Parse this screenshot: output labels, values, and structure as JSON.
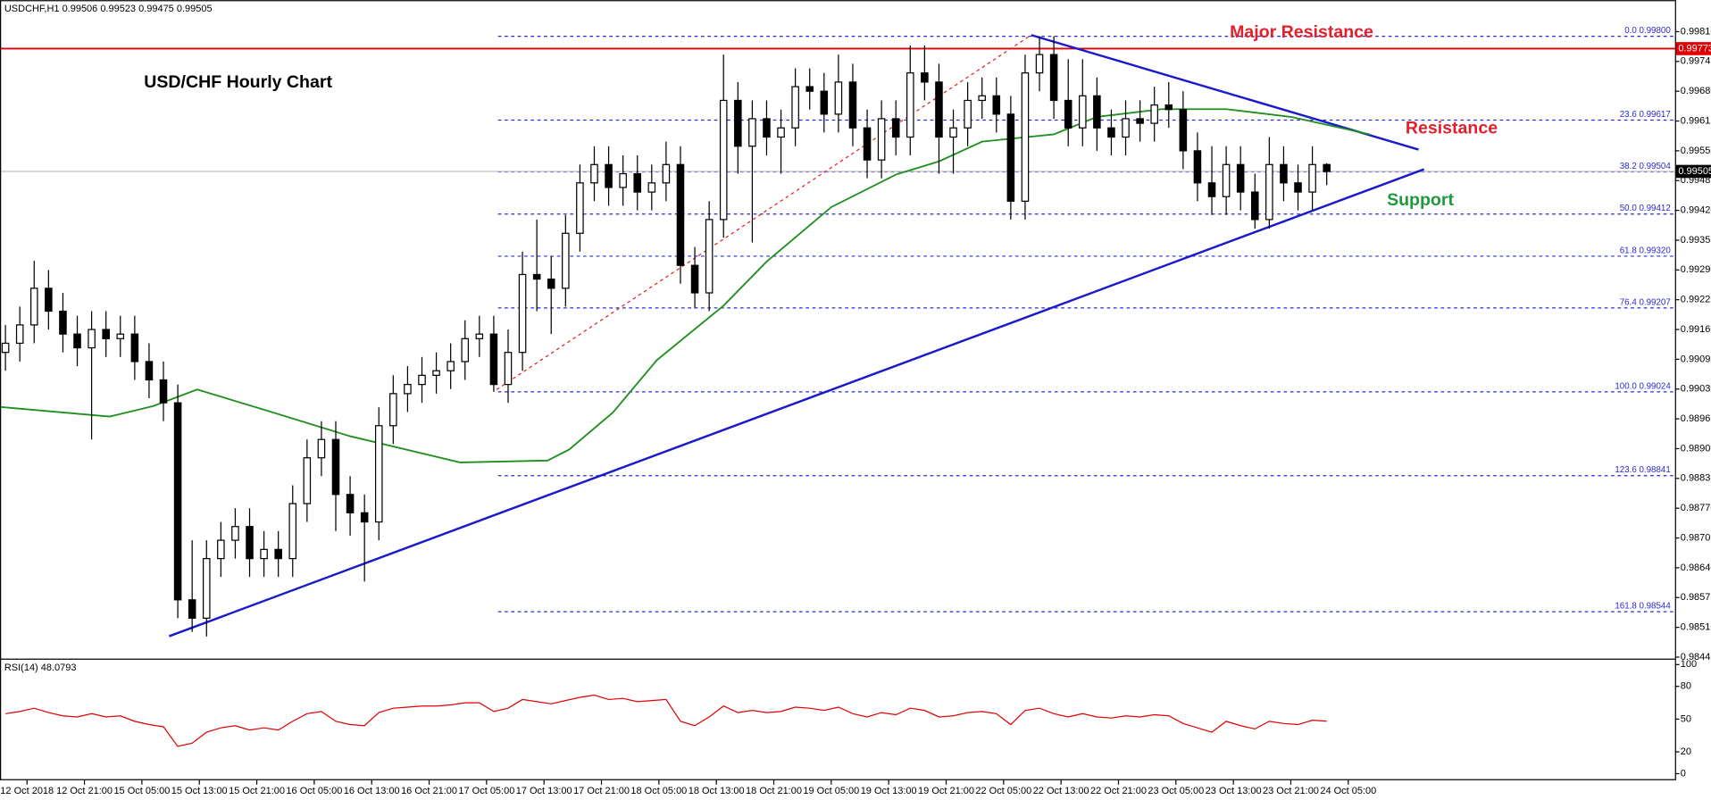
{
  "chart_data": [
    {
      "type": "candlestick",
      "title": "USD/CHF Hourly Chart",
      "subtitle": "USDCHF,H1  0.99506 0.99523 0.99475 0.99505",
      "x": [
        0,
        2,
        4,
        6,
        8,
        10,
        12,
        14,
        16,
        18,
        20,
        22,
        24,
        26,
        28,
        30,
        32,
        34,
        36,
        38,
        40,
        42,
        44,
        46,
        48,
        50,
        52,
        54,
        56,
        58,
        60,
        62,
        64,
        66,
        68,
        70,
        72,
        74,
        76,
        78,
        80,
        82,
        84,
        86,
        88,
        90,
        92,
        94,
        96,
        98,
        100,
        102,
        104,
        106,
        108,
        110,
        112,
        114,
        116,
        118,
        120,
        122,
        124,
        126,
        128,
        130,
        132,
        134,
        136,
        138,
        140,
        142,
        144,
        146,
        148,
        150,
        152,
        154,
        156,
        158,
        160,
        162,
        164,
        166,
        168,
        170,
        172,
        174,
        176,
        178,
        180,
        182,
        184
      ],
      "open": [
        0.9911,
        0.9913,
        0.9917,
        0.9925,
        0.992,
        0.9915,
        0.9912,
        0.9916,
        0.9914,
        0.9915,
        0.9909,
        0.9905,
        0.99,
        0.9857,
        0.9853,
        0.9866,
        0.987,
        0.9873,
        0.9866,
        0.9868,
        0.9866,
        0.9878,
        0.9888,
        0.9892,
        0.988,
        0.9876,
        0.9874,
        0.9895,
        0.9902,
        0.9904,
        0.9906,
        0.9907,
        0.9909,
        0.9914,
        0.9915,
        0.9904,
        0.9911,
        0.9928,
        0.9927,
        0.9925,
        0.9937,
        0.9948,
        0.9952,
        0.9947,
        0.995,
        0.9946,
        0.9948,
        0.9952,
        0.993,
        0.9924,
        0.994,
        0.9966,
        0.9956,
        0.9962,
        0.9958,
        0.996,
        0.9969,
        0.9968,
        0.9963,
        0.997,
        0.996,
        0.9953,
        0.9962,
        0.9958,
        0.9972,
        0.997,
        0.9958,
        0.996,
        0.9966,
        0.9967,
        0.9963,
        0.9944,
        0.9972,
        0.9976,
        0.9966,
        0.996,
        0.9967,
        0.996,
        0.9958,
        0.9962,
        0.9961,
        0.9965,
        0.9964,
        0.9955,
        0.9948,
        0.9945,
        0.9952,
        0.9946,
        0.994,
        0.9952,
        0.9948,
        0.9946,
        0.9952
      ],
      "high": [
        0.9917,
        0.9921,
        0.9931,
        0.9929,
        0.9924,
        0.9919,
        0.992,
        0.992,
        0.9919,
        0.9919,
        0.9913,
        0.9909,
        0.9904,
        0.987,
        0.987,
        0.9874,
        0.9877,
        0.9877,
        0.9872,
        0.9872,
        0.9882,
        0.9892,
        0.9896,
        0.9896,
        0.9884,
        0.988,
        0.9899,
        0.9906,
        0.9908,
        0.991,
        0.9911,
        0.9913,
        0.9918,
        0.9919,
        0.9919,
        0.9916,
        0.9933,
        0.994,
        0.9932,
        0.9941,
        0.9952,
        0.9956,
        0.9956,
        0.9954,
        0.9954,
        0.9952,
        0.9957,
        0.9956,
        0.9934,
        0.9944,
        0.9976,
        0.997,
        0.9966,
        0.9966,
        0.9964,
        0.9973,
        0.9973,
        0.9972,
        0.9976,
        0.9974,
        0.9964,
        0.9966,
        0.9966,
        0.9978,
        0.9978,
        0.9974,
        0.9964,
        0.997,
        0.9971,
        0.9971,
        0.9967,
        0.9976,
        0.998,
        0.998,
        0.9975,
        0.9975,
        0.9971,
        0.9964,
        0.9966,
        0.9966,
        0.9969,
        0.997,
        0.9968,
        0.9959,
        0.9956,
        0.9956,
        0.9956,
        0.995,
        0.9958,
        0.9956,
        0.9952,
        0.9956,
        0.99523
      ],
      "low": [
        0.9907,
        0.9909,
        0.9913,
        0.9916,
        0.9911,
        0.9908,
        0.9892,
        0.991,
        0.991,
        0.9905,
        0.9901,
        0.9896,
        0.9853,
        0.985,
        0.9849,
        0.9862,
        0.9866,
        0.9862,
        0.9862,
        0.9862,
        0.9862,
        0.9874,
        0.9884,
        0.9872,
        0.9871,
        0.9861,
        0.987,
        0.9891,
        0.9898,
        0.99,
        0.9902,
        0.9903,
        0.9905,
        0.991,
        0.99024,
        0.99,
        0.9907,
        0.992,
        0.9915,
        0.9921,
        0.9933,
        0.9944,
        0.9943,
        0.9943,
        0.9942,
        0.9942,
        0.9944,
        0.9926,
        0.99207,
        0.992,
        0.9936,
        0.995,
        0.9935,
        0.9954,
        0.995,
        0.9956,
        0.9964,
        0.9959,
        0.9959,
        0.9956,
        0.9949,
        0.9949,
        0.9954,
        0.9954,
        0.9966,
        0.995,
        0.995,
        0.9956,
        0.9962,
        0.9959,
        0.994,
        0.994,
        0.9968,
        0.9962,
        0.9956,
        0.9956,
        0.9955,
        0.9954,
        0.9954,
        0.9957,
        0.9957,
        0.996,
        0.9951,
        0.9944,
        0.9941,
        0.9941,
        0.9942,
        0.9938,
        0.9938,
        0.9944,
        0.9942,
        0.9942,
        0.99475
      ],
      "close": [
        0.9913,
        0.9917,
        0.9925,
        0.992,
        0.9915,
        0.9912,
        0.9916,
        0.9914,
        0.9915,
        0.9909,
        0.9905,
        0.99,
        0.9857,
        0.9853,
        0.9866,
        0.987,
        0.9873,
        0.9866,
        0.9868,
        0.9866,
        0.9878,
        0.9888,
        0.9892,
        0.988,
        0.9876,
        0.9874,
        0.9895,
        0.9902,
        0.9904,
        0.9906,
        0.9907,
        0.9909,
        0.9914,
        0.9915,
        0.9904,
        0.9911,
        0.9928,
        0.9927,
        0.9925,
        0.9937,
        0.9948,
        0.9952,
        0.9947,
        0.995,
        0.9946,
        0.9948,
        0.9952,
        0.993,
        0.9924,
        0.994,
        0.9966,
        0.9956,
        0.9962,
        0.9958,
        0.996,
        0.9969,
        0.9968,
        0.9963,
        0.997,
        0.996,
        0.9953,
        0.9962,
        0.9958,
        0.9972,
        0.997,
        0.9958,
        0.996,
        0.9966,
        0.9967,
        0.9963,
        0.9944,
        0.9972,
        0.9976,
        0.9966,
        0.996,
        0.9967,
        0.996,
        0.9958,
        0.9962,
        0.9961,
        0.9965,
        0.9964,
        0.9955,
        0.9948,
        0.9945,
        0.9952,
        0.9946,
        0.994,
        0.9952,
        0.9948,
        0.9946,
        0.9952,
        0.99505
      ],
      "up_color": "#ffffff",
      "down_color": "#000000",
      "wick_color": "#000000",
      "xlim": [
        -0.76,
        232.5
      ],
      "xticks": [
        {
          "value": 3,
          "label": "12 Oct 2018"
        },
        {
          "value": 11,
          "label": "12 Oct 21:00"
        },
        {
          "value": 19,
          "label": "15 Oct 05:00"
        },
        {
          "value": 27,
          "label": "15 Oct 13:00"
        },
        {
          "value": 35,
          "label": "15 Oct 21:00"
        },
        {
          "value": 43,
          "label": "16 Oct 05:00"
        },
        {
          "value": 51,
          "label": "16 Oct 13:00"
        },
        {
          "value": 59,
          "label": "16 Oct 21:00"
        },
        {
          "value": 67,
          "label": "17 Oct 05:00"
        },
        {
          "value": 75,
          "label": "17 Oct 13:00"
        },
        {
          "value": 83,
          "label": "17 Oct 21:00"
        },
        {
          "value": 91,
          "label": "18 Oct 05:00"
        },
        {
          "value": 99,
          "label": "18 Oct 13:00"
        },
        {
          "value": 107,
          "label": "18 Oct 21:00"
        },
        {
          "value": 115,
          "label": "19 Oct 05:00"
        },
        {
          "value": 123,
          "label": "19 Oct 13:00"
        },
        {
          "value": 131,
          "label": "19 Oct 21:00"
        },
        {
          "value": 139,
          "label": "22 Oct 05:00"
        },
        {
          "value": 147,
          "label": "22 Oct 13:00"
        },
        {
          "value": 155,
          "label": "22 Oct 21:00"
        },
        {
          "value": 163,
          "label": "23 Oct 05:00"
        },
        {
          "value": 171,
          "label": "23 Oct 13:00"
        },
        {
          "value": 179,
          "label": "23 Oct 21:00"
        },
        {
          "value": 187,
          "label": "24 Oct 05:00"
        }
      ],
      "ylim": [
        0.98443,
        0.99855
      ],
      "yticks": [
        {
          "value": 0.9981,
          "label": "0.99810"
        },
        {
          "value": 0.99745,
          "label": "0.99745"
        },
        {
          "value": 0.9968,
          "label": "0.99680"
        },
        {
          "value": 0.99615,
          "label": "0.99615"
        },
        {
          "value": 0.9955,
          "label": "0.99550"
        },
        {
          "value": 0.99485,
          "label": "0.99485"
        },
        {
          "value": 0.9942,
          "label": "0.99420"
        },
        {
          "value": 0.99355,
          "label": "0.99355"
        },
        {
          "value": 0.9929,
          "label": "0.99290"
        },
        {
          "value": 0.99225,
          "label": "0.99225"
        },
        {
          "value": 0.9916,
          "label": "0.99160"
        },
        {
          "value": 0.99095,
          "label": "0.99095"
        },
        {
          "value": 0.9903,
          "label": "0.99030"
        },
        {
          "value": 0.98965,
          "label": "0.98965"
        },
        {
          "value": 0.989,
          "label": "0.98900"
        },
        {
          "value": 0.98835,
          "label": "0.98835"
        },
        {
          "value": 0.9877,
          "label": "0.98770"
        },
        {
          "value": 0.98705,
          "label": "0.98705"
        },
        {
          "value": 0.9864,
          "label": "0.98640"
        },
        {
          "value": 0.98575,
          "label": "0.98575"
        },
        {
          "value": 0.9851,
          "label": "0.98510"
        },
        {
          "value": 0.98445,
          "label": "0.98445"
        }
      ],
      "moving_average": {
        "color": "#1f8f1f",
        "x": [
          -0.7,
          14.5,
          20.6,
          26.7,
          35.8,
          48,
          63.3,
          75.5,
          78.5,
          84.6,
          90.7,
          100,
          106,
          115,
          124,
          130,
          136,
          146,
          152,
          161,
          170,
          179,
          190
        ],
        "values": [
          0.98991,
          0.9897,
          0.98993,
          0.99029,
          0.98986,
          0.98927,
          0.9887,
          0.98874,
          0.98898,
          0.98979,
          0.99093,
          0.99212,
          0.99308,
          0.99427,
          0.99498,
          0.99527,
          0.9957,
          0.99586,
          0.99624,
          0.99641,
          0.99641,
          0.99624,
          0.99586
        ]
      },
      "hlines": [
        {
          "value": 0.99773,
          "label": "0.99773",
          "color": "#e00000"
        },
        {
          "value": 0.99505,
          "label": "0.99505",
          "color": "#c0c0c0"
        }
      ],
      "fibonacci": {
        "color": "#2a2ad0",
        "start_x": 68.6,
        "levels": [
          {
            "value": 0.998,
            "label": "0.0 0.99800"
          },
          {
            "value": 0.99617,
            "label": "23.6 0.99617"
          },
          {
            "value": 0.99504,
            "label": "38.2 0.99504"
          },
          {
            "value": 0.99412,
            "label": "50.0 0.99412"
          },
          {
            "value": 0.9932,
            "label": "61.8 0.99320"
          },
          {
            "value": 0.99207,
            "label": "76.4 0.99207"
          },
          {
            "value": 0.99024,
            "label": "100.0 0.99024"
          },
          {
            "value": 0.98841,
            "label": "123.6 0.98841"
          },
          {
            "value": 0.98544,
            "label": "161.8 0.98544"
          }
        ]
      },
      "annotations": [
        "Major Resistance",
        "Resistance",
        "Support"
      ]
    },
    {
      "type": "line",
      "title": "RSI(14) 48.0793",
      "x": [
        0,
        2,
        4,
        6,
        8,
        10,
        12,
        14,
        16,
        18,
        20,
        22,
        24,
        26,
        28,
        30,
        32,
        34,
        36,
        38,
        40,
        42,
        44,
        46,
        48,
        50,
        52,
        54,
        56,
        58,
        60,
        62,
        64,
        66,
        68,
        70,
        72,
        74,
        76,
        78,
        80,
        82,
        84,
        86,
        88,
        90,
        92,
        94,
        96,
        98,
        100,
        102,
        104,
        106,
        108,
        110,
        112,
        114,
        116,
        118,
        120,
        122,
        124,
        126,
        128,
        130,
        132,
        134,
        136,
        138,
        140,
        142,
        144,
        146,
        148,
        150,
        152,
        154,
        156,
        158,
        160,
        162,
        164,
        166,
        168,
        170,
        172,
        174,
        176,
        178,
        180,
        182,
        184
      ],
      "values": [
        55,
        57,
        60,
        56,
        53,
        52,
        55,
        52,
        53,
        48,
        45,
        43,
        25,
        28,
        38,
        42,
        44,
        40,
        42,
        40,
        48,
        55,
        57,
        48,
        45,
        44,
        56,
        60,
        61,
        62,
        62,
        63,
        65,
        65,
        57,
        60,
        68,
        66,
        64,
        67,
        70,
        72,
        68,
        69,
        66,
        67,
        68,
        48,
        44,
        52,
        62,
        56,
        58,
        56,
        57,
        61,
        60,
        58,
        61,
        55,
        52,
        56,
        54,
        60,
        58,
        52,
        53,
        56,
        57,
        55,
        45,
        58,
        60,
        55,
        52,
        55,
        52,
        51,
        53,
        52,
        54,
        53,
        46,
        42,
        38,
        48,
        44,
        41,
        48,
        46,
        45,
        49,
        48.0793
      ],
      "color": "#e00000",
      "ylim": [
        0,
        100
      ],
      "yticks": [
        0,
        20,
        50,
        80,
        100
      ]
    }
  ]
}
